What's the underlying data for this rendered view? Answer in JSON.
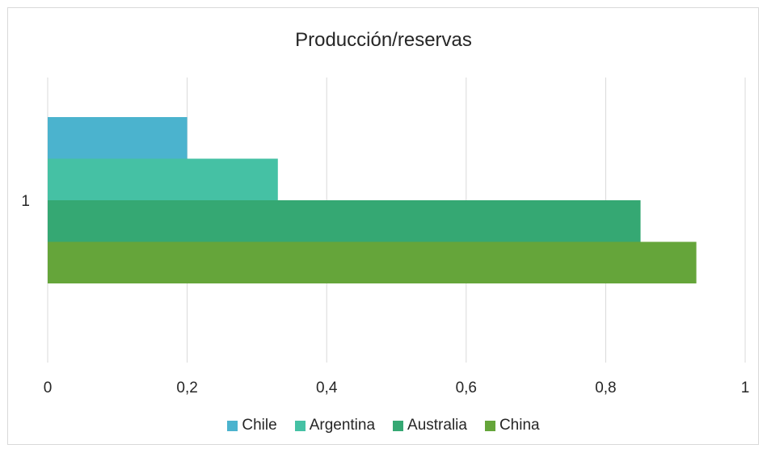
{
  "chart_data": {
    "type": "bar",
    "orientation": "horizontal",
    "title": "Producción/reservas",
    "categories": [
      "1"
    ],
    "series": [
      {
        "name": "Chile",
        "values": [
          0.2
        ],
        "color": "#4bb3ce"
      },
      {
        "name": "Argentina",
        "values": [
          0.33
        ],
        "color": "#45c1a4"
      },
      {
        "name": "Australia",
        "values": [
          0.85
        ],
        "color": "#35a873"
      },
      {
        "name": "China",
        "values": [
          0.93
        ],
        "color": "#65a53a"
      }
    ],
    "xlim": [
      0,
      1
    ],
    "x_ticks": [
      "0",
      "0,2",
      "0,4",
      "0,6",
      "0,8",
      "1"
    ],
    "x_tick_values": [
      0,
      0.2,
      0.4,
      0.6,
      0.8,
      1
    ],
    "xlabel": "",
    "ylabel": "",
    "grid": true,
    "legend_position": "bottom",
    "gridline_color": "#d9d9d9"
  }
}
